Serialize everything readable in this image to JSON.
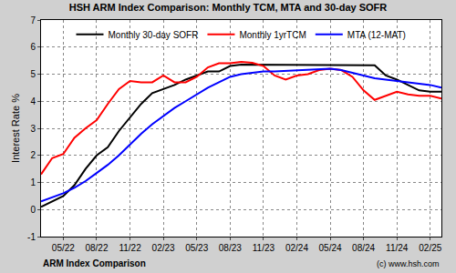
{
  "chart_data": {
    "type": "line",
    "title": "HSH ARM Index Comparison: Monthly TCM, MTA and 30-day SOFR",
    "y_label": "Interest Rate %",
    "categories": [
      null,
      null,
      "05/22",
      null,
      null,
      "08/22",
      null,
      null,
      "11/22",
      null,
      null,
      "02/23",
      null,
      null,
      "05/23",
      null,
      null,
      "08/23",
      null,
      null,
      "11/23",
      null,
      null,
      "02/24",
      null,
      null,
      "05/24",
      null,
      null,
      "08/24",
      null,
      null,
      "11/24",
      null,
      null,
      "02/25",
      null
    ],
    "series": [
      {
        "name": "Monthly 30-day SOFR",
        "color": "#000000",
        "values": [
          0.1,
          0.3,
          0.5,
          0.9,
          1.5,
          2.0,
          2.3,
          2.9,
          3.4,
          3.9,
          4.3,
          4.45,
          4.6,
          4.8,
          4.95,
          5.1,
          5.1,
          5.3,
          5.35,
          5.35,
          5.35,
          5.35,
          5.35,
          5.35,
          5.35,
          5.35,
          5.35,
          5.35,
          5.35,
          5.35,
          5.33,
          4.95,
          4.8,
          4.6,
          4.4,
          4.35,
          4.35
        ]
      },
      {
        "name": "Monthly 1yrTCM",
        "color": "#ff0000",
        "values": [
          1.3,
          1.9,
          2.05,
          2.65,
          3.0,
          3.3,
          3.9,
          4.45,
          4.75,
          4.7,
          4.7,
          4.95,
          4.7,
          4.7,
          4.9,
          5.25,
          5.4,
          5.4,
          5.45,
          5.42,
          5.3,
          4.95,
          4.8,
          4.95,
          5.0,
          5.15,
          5.2,
          5.15,
          4.9,
          4.4,
          4.05,
          4.2,
          4.35,
          4.25,
          4.2,
          4.2,
          4.1
        ]
      },
      {
        "name": "MTA (12-MAT)",
        "color": "#0000ff",
        "values": [
          0.3,
          0.45,
          0.6,
          0.8,
          1.05,
          1.35,
          1.65,
          2.0,
          2.4,
          2.8,
          3.15,
          3.45,
          3.75,
          4.0,
          4.25,
          4.5,
          4.7,
          4.9,
          5.0,
          5.05,
          5.1,
          5.1,
          5.12,
          5.15,
          5.18,
          5.2,
          5.2,
          5.15,
          5.05,
          4.95,
          4.85,
          4.8,
          4.75,
          4.7,
          4.65,
          4.6,
          4.5
        ]
      }
    ],
    "ylim": [
      -1,
      7
    ],
    "yticks": [
      -1,
      0,
      1,
      2,
      3,
      4,
      5,
      6,
      7
    ],
    "grid": true,
    "legend": "top",
    "annotations": [
      "ARM Index Comparison",
      "(c) www.hsh.com"
    ]
  }
}
